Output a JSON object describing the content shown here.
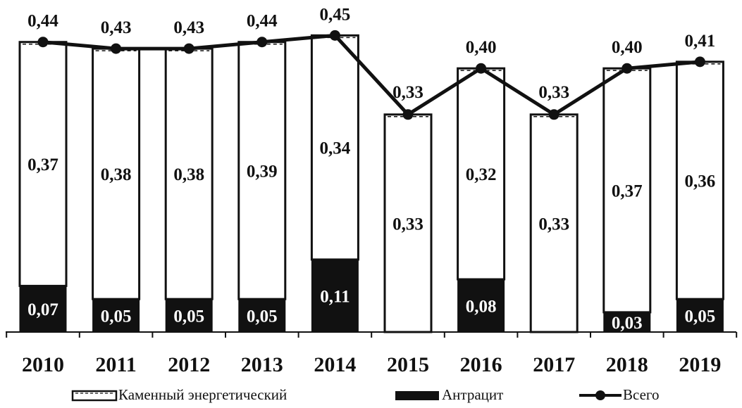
{
  "chart_data": {
    "type": "bar",
    "stacked": true,
    "categories": [
      "2010",
      "2011",
      "2012",
      "2013",
      "2014",
      "2015",
      "2016",
      "2017",
      "2018",
      "2019"
    ],
    "series": [
      {
        "name": "Антрацит",
        "kind": "bar",
        "color": "#111111",
        "values": [
          0.07,
          0.05,
          0.05,
          0.05,
          0.11,
          0.0,
          0.08,
          0.0,
          0.03,
          0.05
        ],
        "labels": [
          "0,07",
          "0,05",
          "0,05",
          "0,05",
          "0,11",
          "",
          "0,08",
          "",
          "0,03",
          "0,05"
        ]
      },
      {
        "name": "Каменный энергетический",
        "kind": "bar",
        "color": "#ffffff",
        "values": [
          0.37,
          0.38,
          0.38,
          0.39,
          0.34,
          0.33,
          0.32,
          0.33,
          0.37,
          0.36
        ],
        "labels": [
          "0,37",
          "0,38",
          "0,38",
          "0,39",
          "0,34",
          "0,33",
          "0,32",
          "0,33",
          "0,37",
          "0,36"
        ]
      },
      {
        "name": "Всего",
        "kind": "line",
        "color": "#111111",
        "values": [
          0.44,
          0.43,
          0.43,
          0.44,
          0.45,
          0.33,
          0.4,
          0.33,
          0.4,
          0.41
        ],
        "labels": [
          "0,44",
          "0,43",
          "0,43",
          "0,44",
          "0,45",
          "0,33",
          "0,40",
          "0,33",
          "0,40",
          "0,41"
        ]
      }
    ],
    "ylim": [
      0,
      0.45
    ],
    "grid": false,
    "legend_position": "bottom"
  }
}
